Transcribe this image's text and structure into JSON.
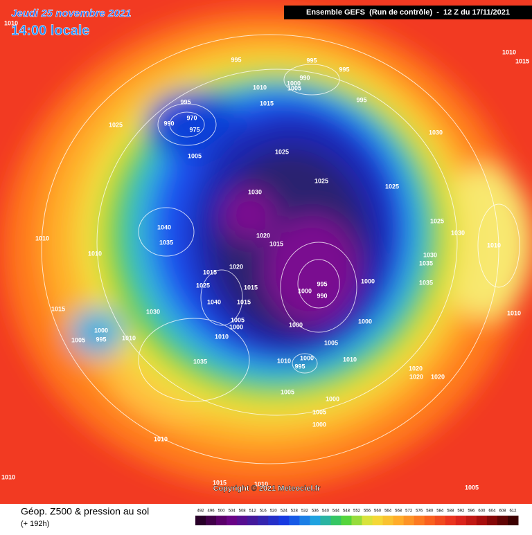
{
  "header": {
    "date": "Jeudi 25 novembre 2021",
    "time": "14:00 locale",
    "run": "Ensemble GEFS  (Run de contrôle)  -  12 Z du 17/11/2021"
  },
  "footer": {
    "title": "Géop. Z500 & pression au sol",
    "lead": "(+ 192h)",
    "copyright": "Copyright © 2021 Meteociel.fr"
  },
  "legend": {
    "ticks": [
      492,
      496,
      500,
      504,
      508,
      512,
      516,
      520,
      524,
      528,
      532,
      536,
      540,
      544,
      548,
      552,
      556,
      560,
      564,
      568,
      572,
      576,
      580,
      584,
      588,
      592,
      596,
      600,
      604,
      608,
      612
    ]
  },
  "isobar_labels": [
    1010,
    995,
    995,
    995,
    990,
    1000,
    1005,
    1010,
    1015,
    995,
    970,
    990,
    975,
    1010,
    1015,
    995,
    1025,
    1030,
    1005,
    1025,
    1025,
    1025,
    1030,
    1040,
    1035,
    1020,
    1015,
    1025,
    1030,
    1010,
    1030,
    1035,
    1010,
    1010,
    1020,
    1015,
    1000,
    995,
    990,
    1000,
    1035,
    1015,
    1025,
    1040,
    1015,
    1030,
    1015,
    1005,
    1000,
    1000,
    995,
    1005,
    1010,
    1010,
    1000,
    1000,
    1005,
    1035,
    1010,
    1000,
    995,
    1010,
    1020,
    1020,
    1020,
    1005,
    1000,
    1005,
    1000,
    1010,
    1010,
    1015,
    1010,
    1005,
    1010
  ]
}
